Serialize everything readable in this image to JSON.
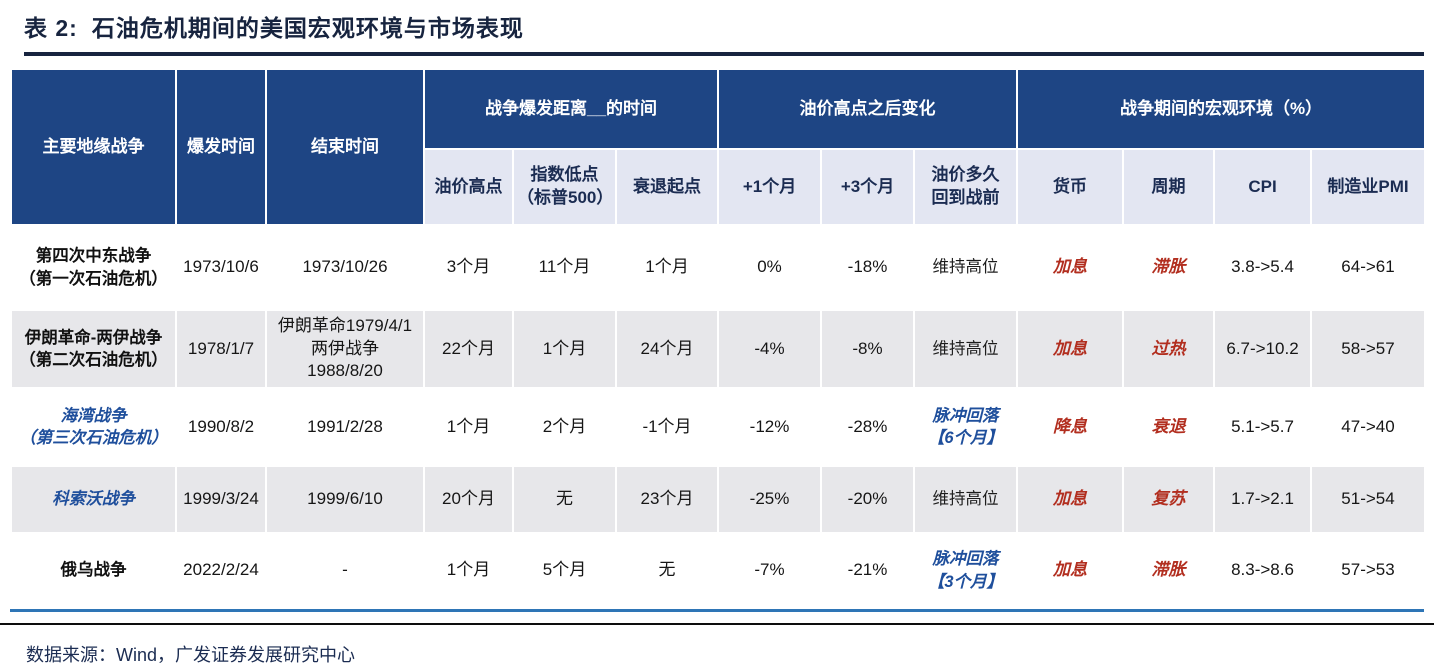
{
  "page": {
    "title_prefix": "表 2:",
    "title_text": "石油危机期间的美国宏观环境与市场表现",
    "source_note": "数据来源：Wind，广发证券发展研究中心"
  },
  "colors": {
    "header_navy": "#1e4584",
    "subheader_lavender": "#e3e6f2",
    "row_shaded": "#e7e7ea",
    "accent_red": "#b22e1f",
    "accent_blue": "#1f4f9c",
    "table_bottom_border": "#2e75b6",
    "title_dark": "#17243f"
  },
  "chart_data": {
    "type": "table",
    "title": "表 2: 石油危机期间的美国宏观环境与市场表现",
    "source": "数据来源：Wind，广发证券发展研究中心",
    "header": {
      "fixed": [
        "主要地缘战争",
        "爆发时间",
        "结束时间"
      ],
      "groups": [
        {
          "label": "战争爆发距离__的时间",
          "span": 3
        },
        {
          "label": "油价高点之后变化",
          "span": 3
        },
        {
          "label": "战争期间的宏观环境（%）",
          "span": 4
        }
      ],
      "sub": [
        "油价高点",
        "指数低点\n（标普500）",
        "衰退起点",
        "+1个月",
        "+3个月",
        "油价多久\n回到战前",
        "货币",
        "周期",
        "CPI",
        "制造业PMI"
      ]
    },
    "columns": [
      "主要地缘战争",
      "爆发时间",
      "结束时间",
      "油价高点",
      "指数低点（标普500）",
      "衰退起点",
      "+1个月",
      "+3个月",
      "油价多久回到战前",
      "货币",
      "周期",
      "CPI",
      "制造业PMI"
    ],
    "rows": [
      {
        "shaded": false,
        "cells": [
          "第四次中东战争\n（第一次石油危机）",
          "1973/10/6",
          "1973/10/26",
          "3个月",
          "11个月",
          "1个月",
          "0%",
          "-18%",
          "维持高位",
          "加息",
          "滞胀",
          "3.8->5.4",
          "64->61"
        ],
        "styles": [
          "name-black",
          "num",
          "num",
          "num",
          "num",
          "num",
          "num",
          "num",
          "kai",
          "red",
          "red",
          "num",
          "num"
        ]
      },
      {
        "shaded": true,
        "cells": [
          "伊朗革命-两伊战争\n（第二次石油危机）",
          "1978/1/7",
          "伊朗革命1979/4/1\n两伊战争\n1988/8/20",
          "22个月",
          "1个月",
          "24个月",
          "-4%",
          "-8%",
          "维持高位",
          "加息",
          "过热",
          "6.7->10.2",
          "58->57"
        ],
        "styles": [
          "name-black",
          "num",
          "num",
          "num",
          "num",
          "num",
          "num",
          "num",
          "kai",
          "red",
          "red",
          "num",
          "num"
        ]
      },
      {
        "shaded": false,
        "cells": [
          "海湾战争\n（第三次石油危机）",
          "1990/8/2",
          "1991/2/28",
          "1个月",
          "2个月",
          "-1个月",
          "-12%",
          "-28%",
          "脉冲回落\n【6个月】",
          "降息",
          "衰退",
          "5.1->5.7",
          "47->40"
        ],
        "styles": [
          "name-blue",
          "num",
          "num",
          "num",
          "num",
          "num",
          "num",
          "num",
          "pulse",
          "red",
          "red",
          "num",
          "num"
        ]
      },
      {
        "shaded": true,
        "cells": [
          "科索沃战争",
          "1999/3/24",
          "1999/6/10",
          "20个月",
          "无",
          "23个月",
          "-25%",
          "-20%",
          "维持高位",
          "加息",
          "复苏",
          "1.7->2.1",
          "51->54"
        ],
        "styles": [
          "name-blue",
          "num",
          "num",
          "num",
          "num",
          "num",
          "num",
          "num",
          "kai",
          "red",
          "red",
          "num",
          "num"
        ]
      },
      {
        "shaded": false,
        "cells": [
          "俄乌战争",
          "2022/2/24",
          "-",
          "1个月",
          "5个月",
          "无",
          "-7%",
          "-21%",
          "脉冲回落\n【3个月】",
          "加息",
          "滞胀",
          "8.3->8.6",
          "57->53"
        ],
        "styles": [
          "name-black",
          "num",
          "num",
          "num",
          "num",
          "num",
          "num",
          "num",
          "pulse",
          "red",
          "red",
          "num",
          "num"
        ]
      }
    ]
  }
}
